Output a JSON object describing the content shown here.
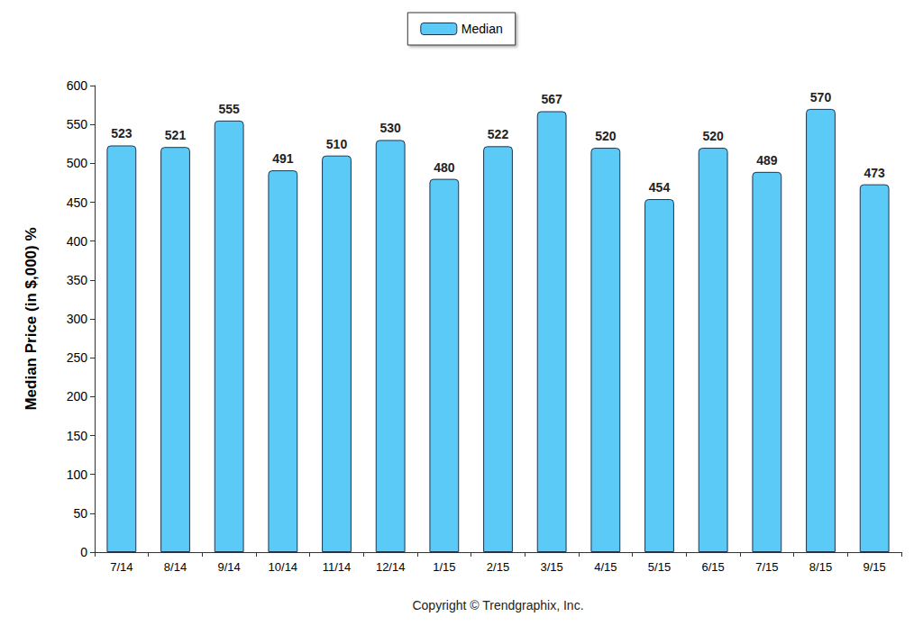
{
  "chart_data": {
    "type": "bar",
    "ylabel": "Median Price (in $,000) %",
    "xlabel": "Copyright © Trendgraphix, Inc.",
    "categories": [
      "7/14",
      "8/14",
      "9/14",
      "10/14",
      "11/14",
      "12/14",
      "1/15",
      "2/15",
      "3/15",
      "4/15",
      "5/15",
      "6/15",
      "7/15",
      "8/15",
      "9/15"
    ],
    "series": [
      {
        "name": "Median",
        "color": "#5ccaf7",
        "values": [
          523,
          521,
          555,
          491,
          510,
          530,
          480,
          522,
          567,
          520,
          454,
          520,
          489,
          570,
          473
        ]
      }
    ],
    "ylim": [
      0,
      600
    ],
    "yticks": [
      0,
      50,
      100,
      150,
      200,
      250,
      300,
      350,
      400,
      450,
      500,
      550,
      600
    ],
    "grid": false,
    "legend": "top",
    "data_labels": true
  }
}
